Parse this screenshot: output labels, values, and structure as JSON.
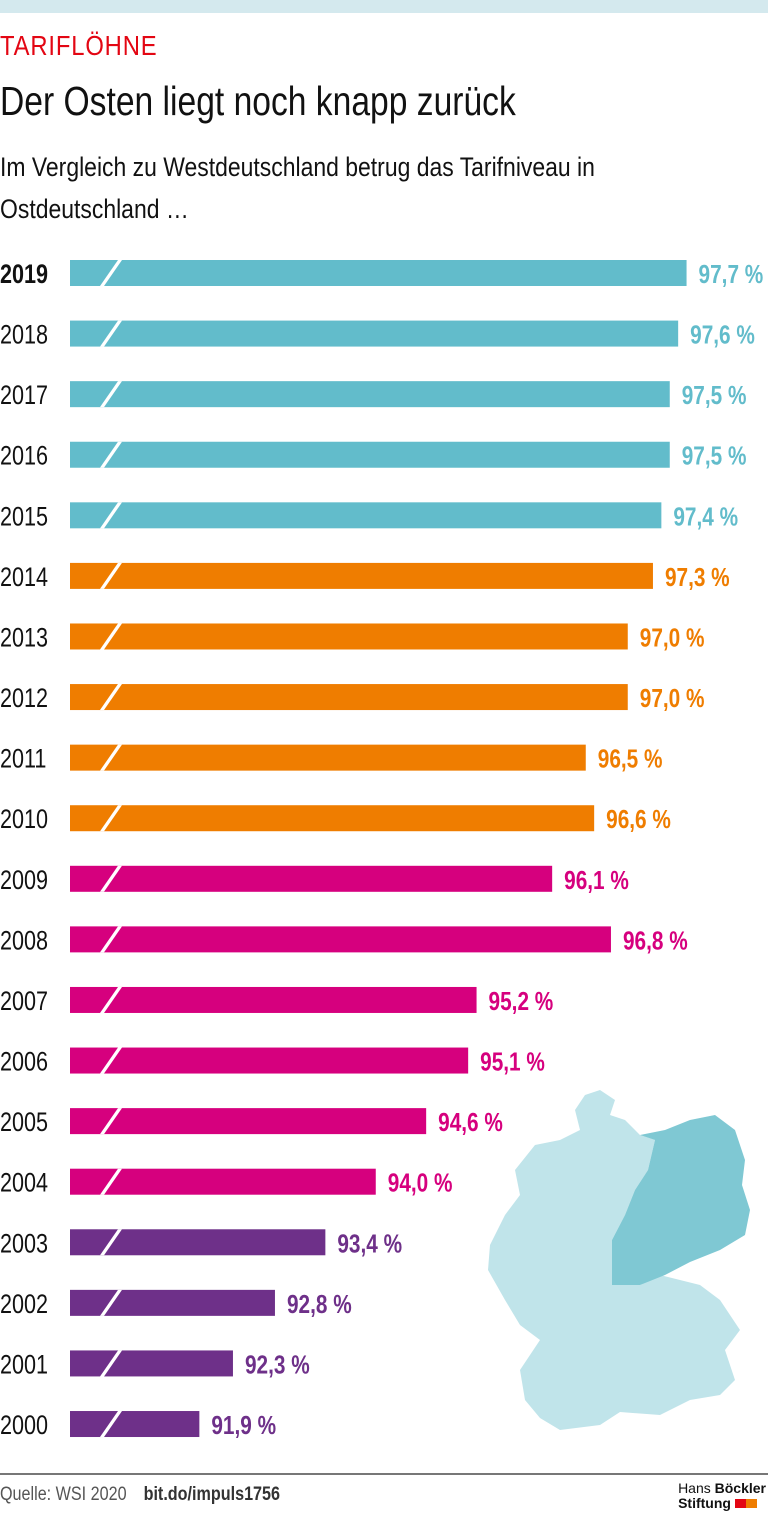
{
  "kicker": "TARIFLÖHNE",
  "title": "Der Osten liegt noch knapp zurück",
  "subtitle": "Im Vergleich zu Westdeutschland betrug das Tarifniveau in Ostdeutschland …",
  "footer": {
    "source": "Quelle: WSI 2020",
    "link": "bit.do/impuls1756",
    "logo_line1_a": "Hans",
    "logo_line1_b": "Böckler",
    "logo_line2": "Stiftung"
  },
  "colors": {
    "teal": "#62bccb",
    "orange": "#ef7d00",
    "magenta": "#d6007e",
    "purple": "#6e3089",
    "kicker": "#e30613",
    "map_west": "#c0e4ea",
    "map_east": "#7fc8d3"
  },
  "chart_data": {
    "type": "bar",
    "orientation": "horizontal",
    "axis_break": true,
    "categories": [
      "2019",
      "2018",
      "2017",
      "2016",
      "2015",
      "2014",
      "2013",
      "2012",
      "2011",
      "2010",
      "2009",
      "2008",
      "2007",
      "2006",
      "2005",
      "2004",
      "2003",
      "2002",
      "2001",
      "2000"
    ],
    "values": [
      97.7,
      97.6,
      97.5,
      97.5,
      97.4,
      97.3,
      97.0,
      97.0,
      96.5,
      96.6,
      96.1,
      96.8,
      95.2,
      95.1,
      94.6,
      94.0,
      93.4,
      92.8,
      92.3,
      91.9
    ],
    "labels": [
      "97,7 %",
      "97,6 %",
      "97,5 %",
      "97,5 %",
      "97,4 %",
      "97,3 %",
      "97,0 %",
      "97,0 %",
      "96,5 %",
      "96,6 %",
      "96,1 %",
      "96,8 %",
      "95,2 %",
      "95,1 %",
      "94,6 %",
      "94,0 %",
      "93,4 %",
      "92,8 %",
      "92,3 %",
      "91,9 %"
    ],
    "bar_colors": [
      "teal",
      "teal",
      "teal",
      "teal",
      "teal",
      "orange",
      "orange",
      "orange",
      "orange",
      "orange",
      "magenta",
      "magenta",
      "magenta",
      "magenta",
      "magenta",
      "magenta",
      "purple",
      "purple",
      "purple",
      "purple"
    ],
    "unit": "%"
  }
}
